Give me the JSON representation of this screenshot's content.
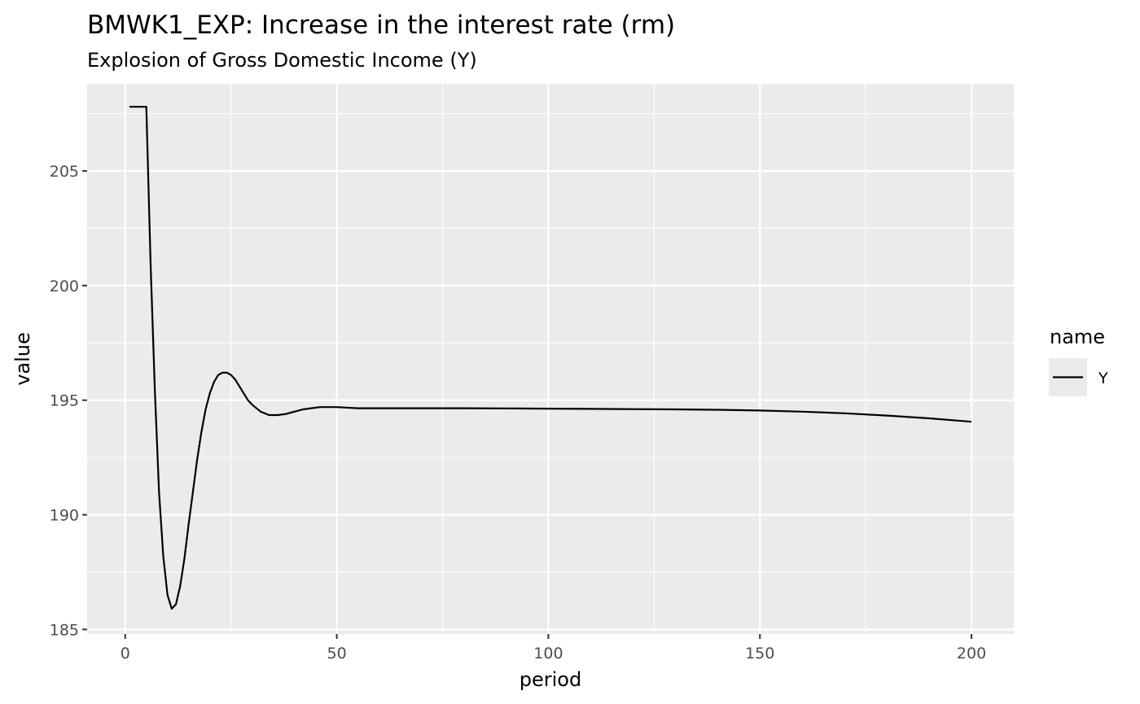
{
  "chart_data": {
    "type": "line",
    "title": "BMWK1_EXP: Increase in the interest rate (rm)",
    "subtitle": "Explosion of Gross Domestic Income (Y)",
    "xlabel": "period",
    "ylabel": "value",
    "xlim": [
      -9,
      210
    ],
    "ylim": [
      184.8,
      208.8
    ],
    "x_ticks": [
      0,
      50,
      100,
      150,
      200
    ],
    "x_tick_labels": [
      "0",
      "50",
      "100",
      "150",
      "200"
    ],
    "y_ticks": [
      185,
      190,
      195,
      200,
      205
    ],
    "y_tick_labels": [
      "185",
      "190",
      "195",
      "200",
      "205"
    ],
    "grid": true,
    "legend": {
      "title": "name",
      "position": "right"
    },
    "series": [
      {
        "name": "Y",
        "color": "#000000",
        "points": [
          [
            1,
            207.8
          ],
          [
            2,
            207.8
          ],
          [
            3,
            207.8
          ],
          [
            4,
            207.8
          ],
          [
            5,
            207.8
          ],
          [
            6,
            201.0
          ],
          [
            7,
            195.5
          ],
          [
            8,
            191.0
          ],
          [
            9,
            188.2
          ],
          [
            10,
            186.5
          ],
          [
            11,
            185.9
          ],
          [
            12,
            186.1
          ],
          [
            13,
            186.9
          ],
          [
            14,
            188.1
          ],
          [
            15,
            189.6
          ],
          [
            16,
            191.0
          ],
          [
            17,
            192.4
          ],
          [
            18,
            193.6
          ],
          [
            19,
            194.6
          ],
          [
            20,
            195.3
          ],
          [
            21,
            195.8
          ],
          [
            22,
            196.1
          ],
          [
            23,
            196.2
          ],
          [
            24,
            196.2
          ],
          [
            25,
            196.1
          ],
          [
            26,
            195.9
          ],
          [
            27,
            195.6
          ],
          [
            28,
            195.3
          ],
          [
            29,
            195.0
          ],
          [
            30,
            194.8
          ],
          [
            32,
            194.5
          ],
          [
            34,
            194.35
          ],
          [
            36,
            194.35
          ],
          [
            38,
            194.4
          ],
          [
            40,
            194.5
          ],
          [
            42,
            194.6
          ],
          [
            44,
            194.65
          ],
          [
            46,
            194.7
          ],
          [
            48,
            194.7
          ],
          [
            50,
            194.7
          ],
          [
            55,
            194.65
          ],
          [
            60,
            194.65
          ],
          [
            70,
            194.65
          ],
          [
            80,
            194.65
          ],
          [
            90,
            194.64
          ],
          [
            100,
            194.63
          ],
          [
            110,
            194.62
          ],
          [
            120,
            194.61
          ],
          [
            130,
            194.6
          ],
          [
            140,
            194.58
          ],
          [
            150,
            194.55
          ],
          [
            160,
            194.5
          ],
          [
            170,
            194.43
          ],
          [
            180,
            194.33
          ],
          [
            190,
            194.21
          ],
          [
            200,
            194.06
          ]
        ]
      }
    ]
  }
}
